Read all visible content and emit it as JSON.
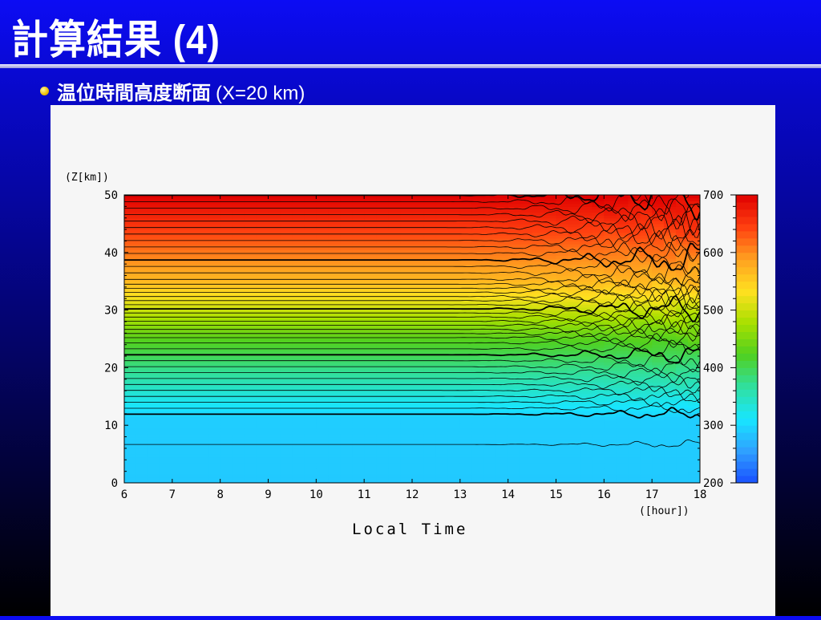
{
  "slide": {
    "title": "計算結果 (4)",
    "bullet_main": "温位時間高度断面",
    "bullet_sub": "(X=20 km)"
  },
  "chart_data": {
    "type": "heatmap",
    "title": "",
    "xlabel": "Local Time",
    "xunit": "([hour])",
    "ylabel": "",
    "yunit": "(Z[km])",
    "xlim": [
      6,
      18
    ],
    "ylim": [
      0,
      50
    ],
    "xticks": [
      6,
      7,
      8,
      9,
      10,
      11,
      12,
      13,
      14,
      15,
      16,
      17,
      18
    ],
    "yticks": [
      0,
      10,
      20,
      30,
      40,
      50
    ],
    "colorbar": {
      "range": [
        200,
        700
      ],
      "ticks": [
        200,
        300,
        400,
        500,
        600,
        700
      ],
      "colors": [
        "#1a50ff",
        "#2fa0ff",
        "#18e6ff",
        "#30e0a0",
        "#50d020",
        "#a8e000",
        "#ffe020",
        "#ffa020",
        "#ff4010",
        "#e00000"
      ]
    },
    "contours": {
      "interval": 10,
      "emphasized_every": 100,
      "min": 290,
      "max": 700
    },
    "surface_value": 288,
    "top_value": 700
  }
}
